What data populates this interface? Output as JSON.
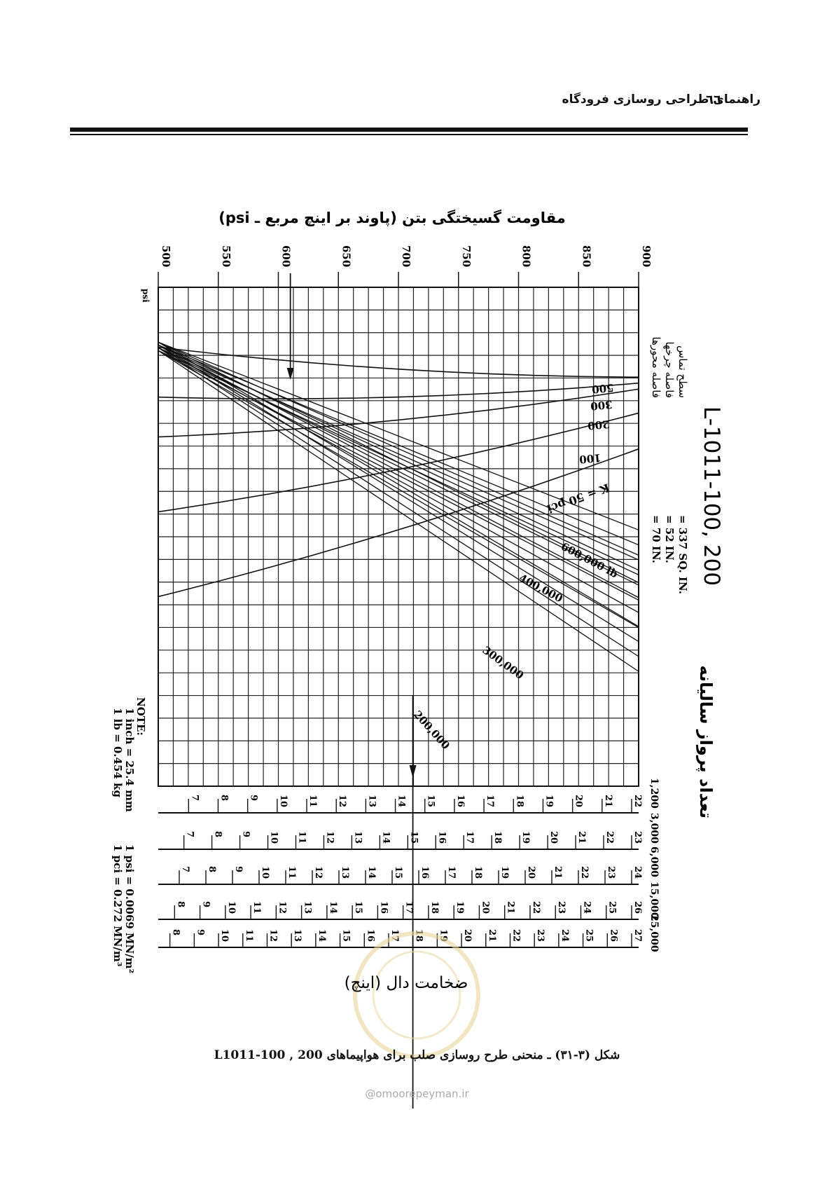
{
  "header": {
    "title": "راهنمای طراحی روسازی فرودگاه",
    "page_number": "٦٦"
  },
  "figure": {
    "caption": "شکل (۳-۳۱) ـ منحنی طرح روسازی صلب برای هواپیماهای 200 , L1011-100",
    "watermark_url": "@omoorepeyman.ir",
    "aircraft_title": "L-1011-100, 200",
    "contact_area_label": "سطح تماس",
    "contact_area_value": "= 337 SQ. IN.",
    "wheel_spacing_label": "فاصله چرخها",
    "wheel_spacing_value": "= 52 IN.",
    "axle_spacing_label": "فاصله محورها",
    "axle_spacing_value": "= 70 IN.",
    "top_axis_title": "مقاومت گسیختگی بتن (پاوند بر اینچ مربع ـ psi)",
    "bottom_axis_title": "ضخامت دال (اینچ)",
    "departures_title": "تعداد پرواز سالیانه",
    "side_label": "psi",
    "note_title": "NOTE:",
    "note_lines": [
      "1 inch = 25.4 mm",
      "1 lb = 0.454 kg",
      "1 psi = 0.0069 MN/m²",
      "1 pci = 0.272 MN/m³"
    ],
    "k_label": "K = 50 pci",
    "k_values": [
      "100",
      "200",
      "300",
      "500"
    ],
    "load_labels": [
      "600,000 lb",
      "400,000",
      "300,000",
      "200,000"
    ]
  },
  "chart_data": {
    "type": "line",
    "flexural_strength_psi_ticks": [
      "900",
      "850",
      "800",
      "750",
      "700",
      "650",
      "600",
      "550",
      "500"
    ],
    "annual_departures": [
      "1,200",
      "3,000",
      "6,000",
      "15,000",
      "25,000"
    ],
    "thickness_scales": [
      {
        "departures": "1,200",
        "ticks": [
          "22",
          "21",
          "20",
          "19",
          "18",
          "17",
          "16",
          "15",
          "14",
          "13",
          "12",
          "11",
          "10",
          "9",
          "8",
          "7"
        ]
      },
      {
        "departures": "3,000",
        "ticks": [
          "23",
          "22",
          "21",
          "20",
          "19",
          "18",
          "17",
          "16",
          "15",
          "14",
          "13",
          "12",
          "11",
          "10",
          "9",
          "8",
          "7"
        ]
      },
      {
        "departures": "6,000",
        "ticks": [
          "24",
          "23",
          "22",
          "21",
          "20",
          "19",
          "18",
          "17",
          "16",
          "15",
          "14",
          "13",
          "12",
          "11",
          "10",
          "9",
          "8",
          "7"
        ]
      },
      {
        "departures": "15,000",
        "ticks": [
          "26",
          "25",
          "24",
          "23",
          "22",
          "21",
          "20",
          "19",
          "18",
          "17",
          "16",
          "15",
          "14",
          "13",
          "12",
          "11",
          "10",
          "9",
          "8"
        ]
      },
      {
        "departures": "25,000",
        "ticks": [
          "27",
          "26",
          "25",
          "24",
          "23",
          "22",
          "21",
          "20",
          "19",
          "18",
          "17",
          "16",
          "15",
          "14",
          "13",
          "12",
          "11",
          "10",
          "9",
          "8"
        ]
      }
    ],
    "example_path": {
      "flexural_strength_psi": 610,
      "thickness_in": 16
    },
    "k_curves": [
      {
        "k_pci": 50,
        "level_at_left": 0.62,
        "level_at_right": 0.12
      },
      {
        "k_pci": 100,
        "level_at_left": 0.45,
        "level_at_right": 0.06
      },
      {
        "k_pci": 200,
        "level_at_left": 0.3,
        "level_at_right": 0.02
      },
      {
        "k_pci": 300,
        "level_at_left": 0.22,
        "level_at_right": 0.01
      },
      {
        "k_pci": 500,
        "level_at_left": 0.12,
        "level_at_right": 0.0
      }
    ],
    "load_curves": [
      {
        "gross_weight_lb": 600000,
        "slope": 0.62
      },
      {
        "gross_weight_lb": 400000,
        "slope": 0.85
      },
      {
        "gross_weight_lb": 300000,
        "slope": 1.1
      },
      {
        "gross_weight_lb": 200000,
        "slope": 1.5
      }
    ],
    "grid": true
  }
}
